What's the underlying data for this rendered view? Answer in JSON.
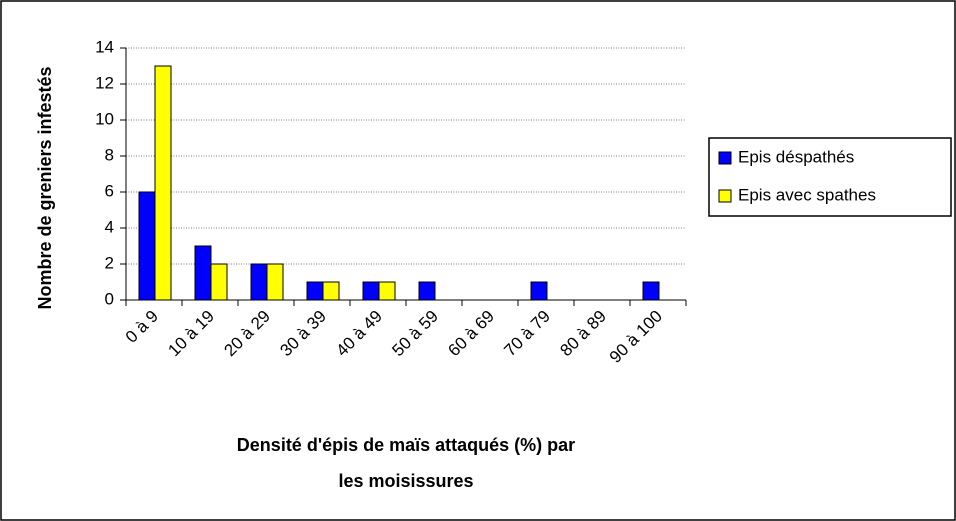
{
  "chart_data": {
    "type": "bar",
    "ylabel": "Nombre de greniers infestés",
    "xlabel": [
      "Densité d'épis de maïs attaqués (%) par",
      "les moisissures"
    ],
    "categories": [
      "0 à 9",
      "10 à 19",
      "20 à 29",
      "30 à 39",
      "40 à 49",
      "50 à 59",
      "60 à 69",
      "70 à 79",
      "80 à 89",
      "90 à 100"
    ],
    "series": [
      {
        "name": "Epis déspathés",
        "color": "#0000ff",
        "values": [
          6,
          3,
          2,
          1,
          1,
          1,
          0,
          1,
          0,
          1
        ]
      },
      {
        "name": "Epis avec spathes",
        "color": "#ffff00",
        "values": [
          13,
          2,
          2,
          1,
          1,
          0,
          0,
          0,
          0,
          0
        ]
      }
    ],
    "ylim": [
      0,
      14
    ],
    "yticks": [
      0,
      2,
      4,
      6,
      8,
      10,
      12,
      14
    ],
    "grid": true,
    "legend": "right"
  }
}
